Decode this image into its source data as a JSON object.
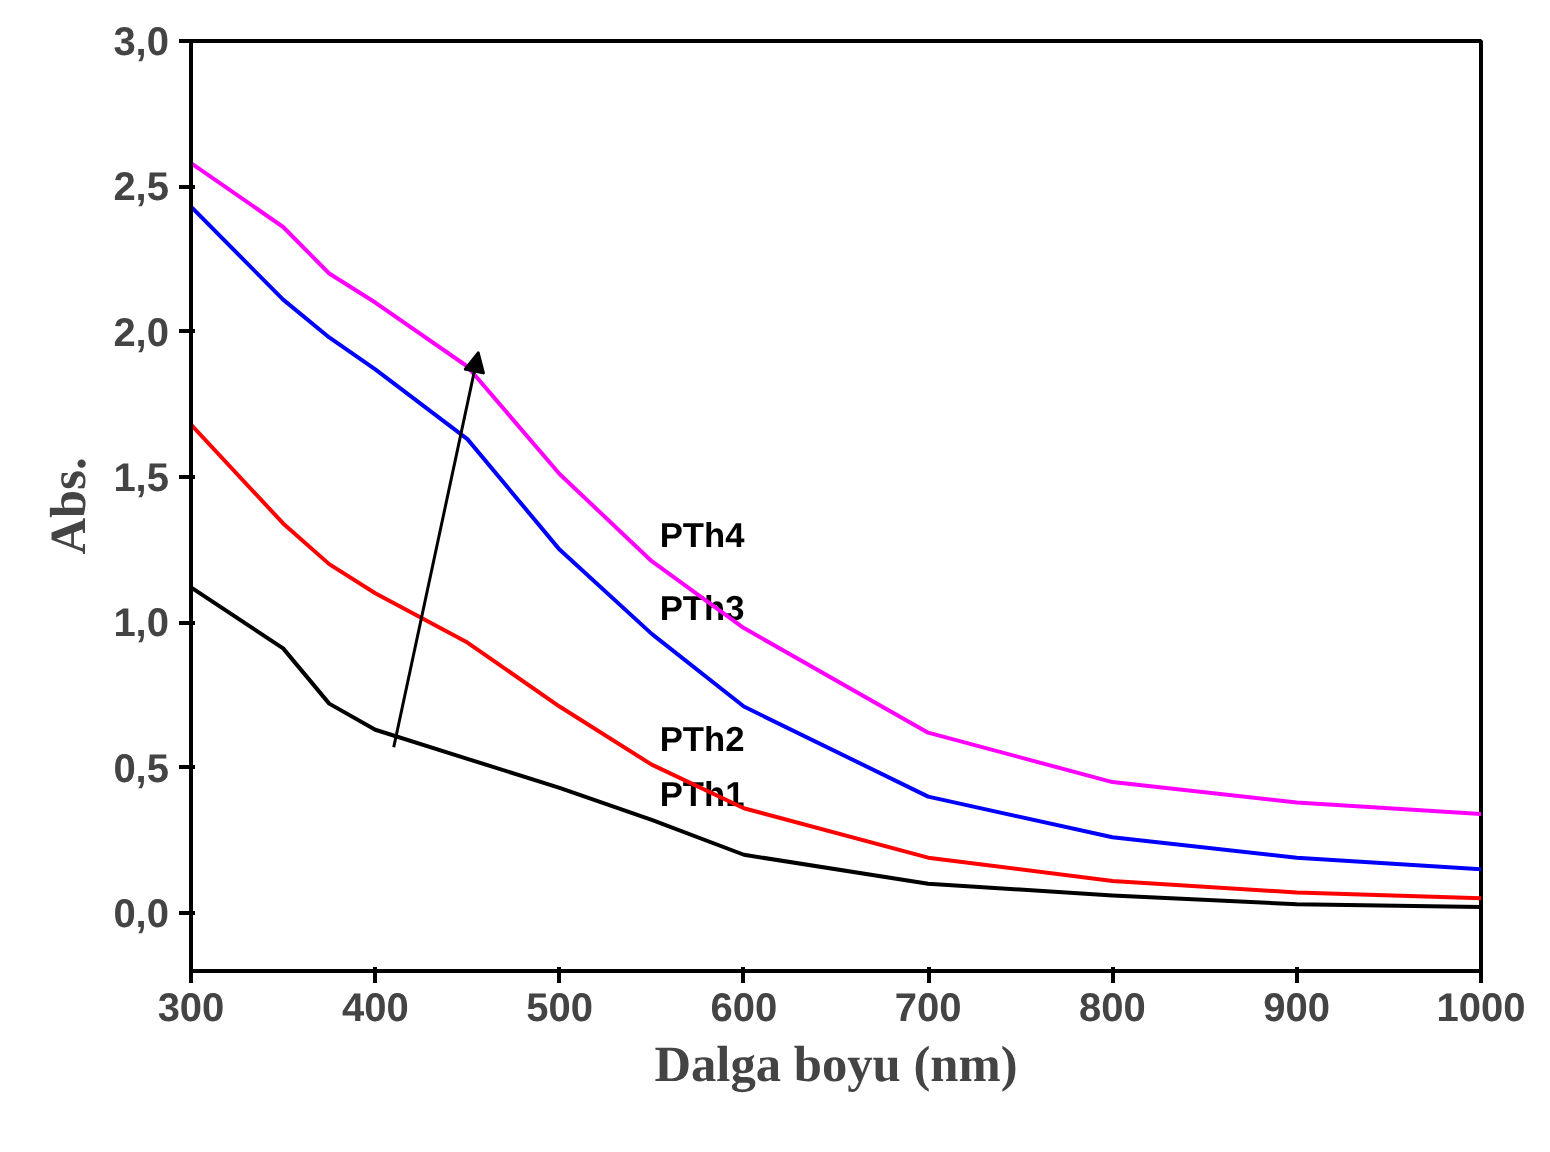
{
  "chart_data": {
    "type": "line",
    "xlabel": "Dalga boyu (nm)",
    "ylabel": "Abs.",
    "xlim": [
      300,
      1000
    ],
    "ylim": [
      -0.2,
      3.0
    ],
    "xticks": [
      300,
      400,
      500,
      600,
      700,
      800,
      900,
      1000
    ],
    "yticks": [
      {
        "value": 0,
        "label": "0,0"
      },
      {
        "value": 0.5,
        "label": "0,5"
      },
      {
        "value": 1,
        "label": "1,0"
      },
      {
        "value": 1.5,
        "label": "1,5"
      },
      {
        "value": 2,
        "label": "2,0"
      },
      {
        "value": 2.5,
        "label": "2,5"
      },
      {
        "value": 3,
        "label": "3,0"
      }
    ],
    "x": [
      300,
      350,
      375,
      400,
      450,
      500,
      550,
      600,
      700,
      800,
      900,
      1000
    ],
    "series": [
      {
        "name": "PTh1",
        "color": "#000000",
        "values": [
          1.12,
          0.91,
          0.72,
          0.63,
          0.53,
          0.43,
          0.32,
          0.2,
          0.1,
          0.06,
          0.03,
          0.02
        ]
      },
      {
        "name": "PTh2",
        "color": "#ff0000",
        "values": [
          1.68,
          1.34,
          1.2,
          1.1,
          0.93,
          0.71,
          0.51,
          0.36,
          0.19,
          0.11,
          0.07,
          0.05
        ]
      },
      {
        "name": "PTh3",
        "color": "#0000ff",
        "values": [
          2.43,
          2.11,
          1.98,
          1.87,
          1.63,
          1.25,
          0.96,
          0.71,
          0.4,
          0.26,
          0.19,
          0.15
        ]
      },
      {
        "name": "PTh4",
        "color": "#ff00ff",
        "values": [
          2.58,
          2.36,
          2.2,
          2.1,
          1.88,
          1.51,
          1.21,
          0.98,
          0.62,
          0.45,
          0.38,
          0.34
        ]
      }
    ],
    "grid": false,
    "legend": false,
    "line_style": "solid",
    "marker": "none"
  }
}
